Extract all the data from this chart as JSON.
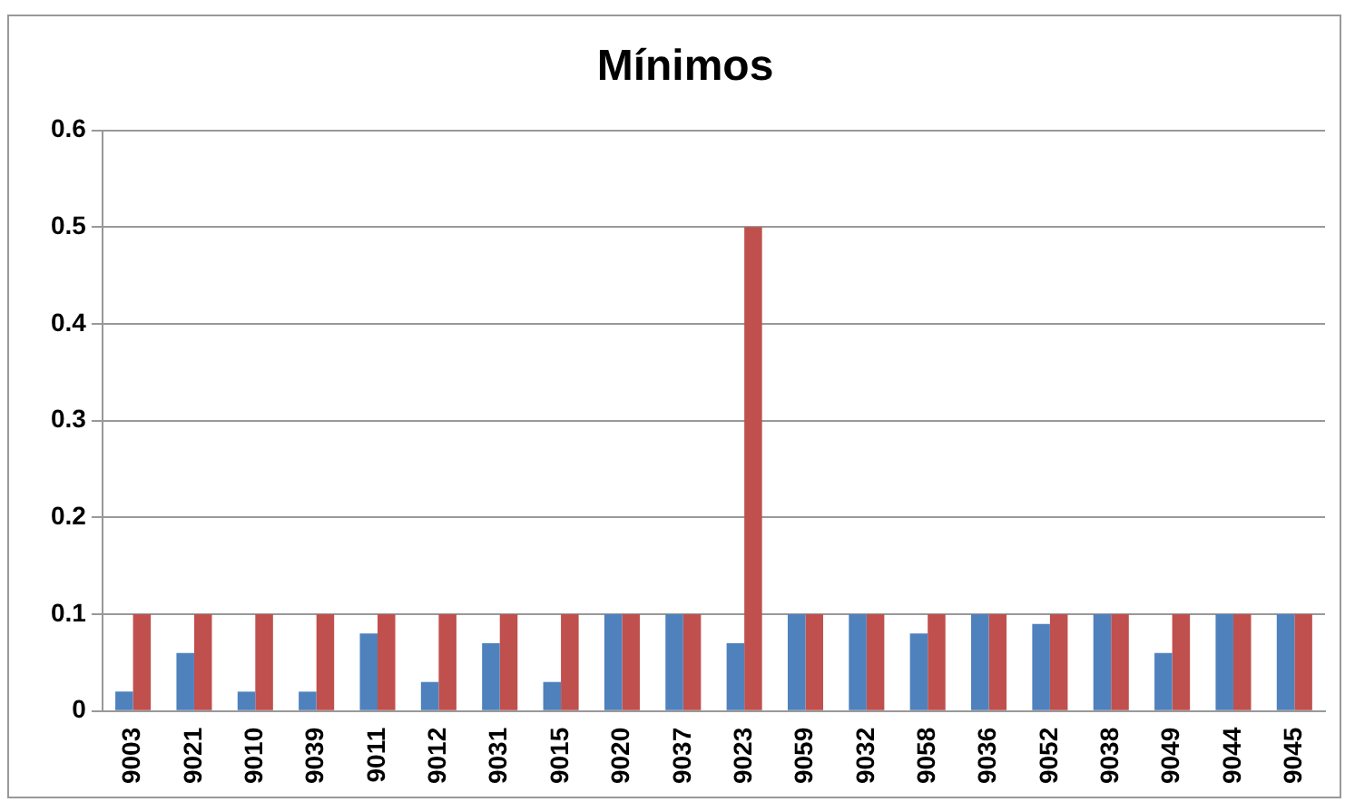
{
  "chart_data": {
    "type": "bar",
    "title": "Mínimos",
    "categories": [
      "9003",
      "9021",
      "9010",
      "9039",
      "9011",
      "9012",
      "9031",
      "9015",
      "9020",
      "9037",
      "9023",
      "9059",
      "9032",
      "9058",
      "9036",
      "9052",
      "9038",
      "9049",
      "9044",
      "9045"
    ],
    "series": [
      {
        "color": "#4f81bd",
        "values": [
          0.02,
          0.06,
          0.02,
          0.02,
          0.08,
          0.03,
          0.07,
          0.03,
          0.1,
          0.1,
          0.07,
          0.1,
          0.1,
          0.08,
          0.1,
          0.09,
          0.1,
          0.06,
          0.1,
          0.1
        ]
      },
      {
        "color": "#c0504d",
        "values": [
          0.1,
          0.1,
          0.1,
          0.1,
          0.1,
          0.1,
          0.1,
          0.1,
          0.1,
          0.1,
          0.5,
          0.1,
          0.1,
          0.1,
          0.1,
          0.1,
          0.1,
          0.1,
          0.1,
          0.1
        ]
      }
    ],
    "ylim": [
      0,
      0.6
    ],
    "yticks": [
      0,
      0.1,
      0.2,
      0.3,
      0.4,
      0.5,
      0.6
    ],
    "grid": "y",
    "legend": false
  }
}
